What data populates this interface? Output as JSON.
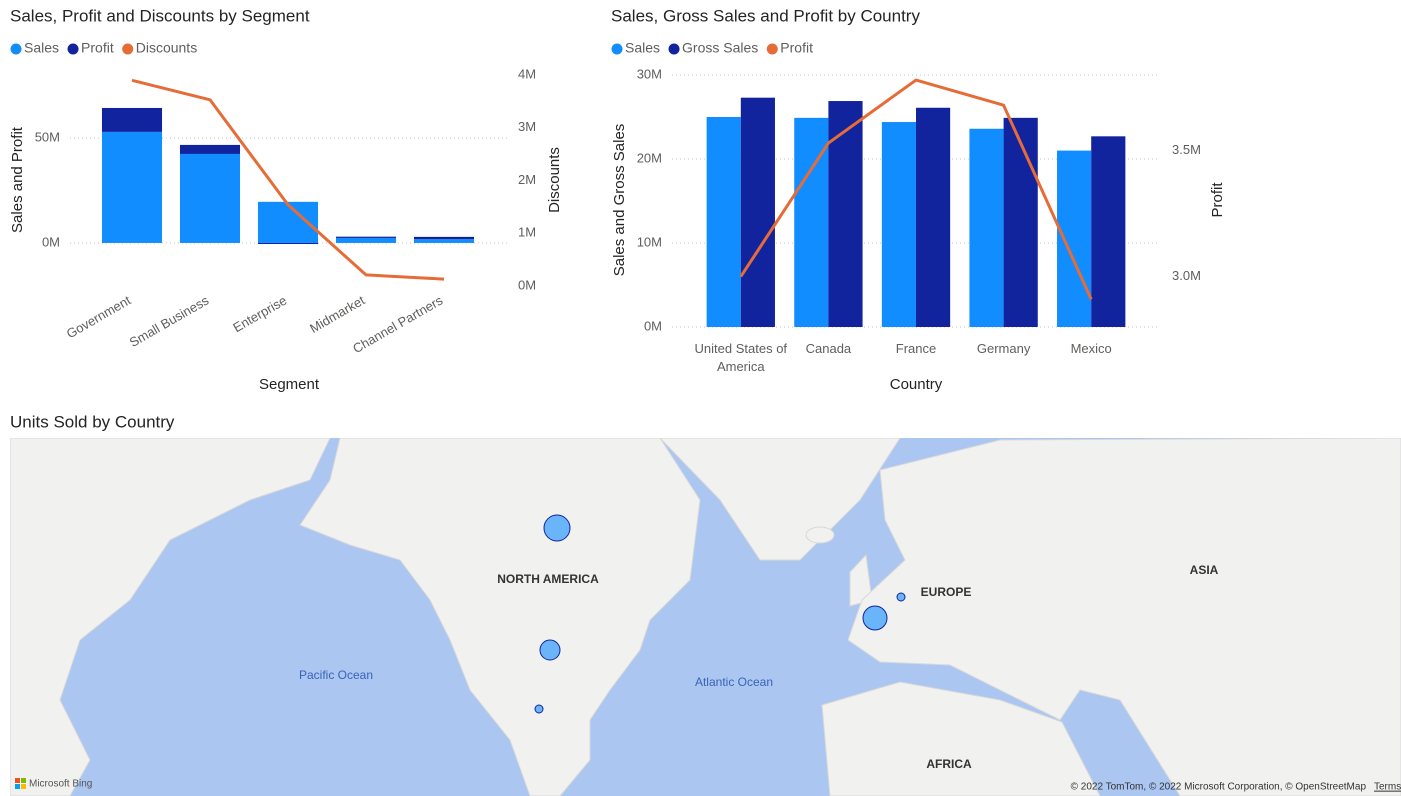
{
  "chart_data": [
    {
      "type": "combo",
      "title": "Sales, Profit and Discounts by Segment",
      "x_label": "Segment",
      "y_label": "Sales and Profit",
      "y2_label": "Discounts",
      "bar_mode": "stacked",
      "categories": [
        "Government",
        "Small Business",
        "Enterprise",
        "Midmarket",
        "Channel Partners"
      ],
      "series": [
        {
          "name": "Sales",
          "color": "#118dff",
          "type": "bar",
          "values": [
            52.9,
            42.4,
            19.6,
            2.4,
            1.8
          ]
        },
        {
          "name": "Profit",
          "color": "#12239e",
          "type": "bar",
          "values": [
            11.4,
            4.3,
            -0.5,
            0.6,
            1.1
          ]
        },
        {
          "name": "Discounts",
          "color": "#e66c37",
          "type": "line",
          "axis": "y2",
          "values": [
            3.9,
            3.53,
            1.54,
            0.21,
            0.13
          ]
        }
      ],
      "ylim": [
        -20.5,
        80
      ],
      "yticks": [
        {
          "value": 0,
          "label": "0M"
        },
        {
          "value": 50,
          "label": "50M"
        }
      ],
      "y2lim": [
        0,
        4
      ],
      "y2ticks": [
        {
          "value": 0,
          "label": "0M"
        },
        {
          "value": 1,
          "label": "1M"
        },
        {
          "value": 2,
          "label": "2M"
        },
        {
          "value": 3,
          "label": "3M"
        },
        {
          "value": 4,
          "label": "4M"
        }
      ],
      "grid": true,
      "legend": "top-left"
    },
    {
      "type": "combo",
      "title": "Sales, Gross Sales and Profit by Country",
      "x_label": "Country",
      "y_label": "Sales and Gross Sales",
      "y2_label": "Profit",
      "bar_mode": "grouped",
      "categories": [
        "United States of America",
        "Canada",
        "France",
        "Germany",
        "Mexico"
      ],
      "series": [
        {
          "name": "Sales",
          "color": "#118dff",
          "type": "bar",
          "values": [
            25.0,
            24.9,
            24.4,
            23.6,
            21.0
          ]
        },
        {
          "name": "Gross Sales",
          "color": "#12239e",
          "type": "bar",
          "values": [
            27.3,
            26.9,
            26.1,
            24.9,
            22.7
          ]
        },
        {
          "name": "Profit",
          "color": "#e66c37",
          "type": "line",
          "axis": "y2",
          "values": [
            3.0,
            3.53,
            3.78,
            3.68,
            2.91
          ]
        }
      ],
      "ylim": [
        0,
        30
      ],
      "yticks": [
        {
          "value": 0,
          "label": "0M"
        },
        {
          "value": 10,
          "label": "10M"
        },
        {
          "value": 20,
          "label": "20M"
        },
        {
          "value": 30,
          "label": "30M"
        }
      ],
      "y2lim": [
        2.8,
        3.8
      ],
      "y2ticks": [
        {
          "value": 3.0,
          "label": "3.0M"
        },
        {
          "value": 3.5,
          "label": "3.5M"
        }
      ],
      "grid": true,
      "legend": "top-left"
    },
    {
      "type": "map",
      "title": "Units Sold by Country",
      "categories": [
        "Canada",
        "United States of America",
        "France",
        "Germany",
        "Mexico"
      ],
      "values": [
        169,
        100,
        144,
        16,
        16
      ],
      "color": "#118dff",
      "labels": [
        "NORTH AMERICA",
        "EUROPE",
        "ASIA",
        "AFRICA",
        "Pacific Ocean",
        "Atlantic Ocean"
      ],
      "provider": "Microsoft Bing",
      "attribution": "© 2022 TomTom, © 2022 Microsoft Corporation, © OpenStreetMap",
      "terms": "Terms"
    }
  ]
}
